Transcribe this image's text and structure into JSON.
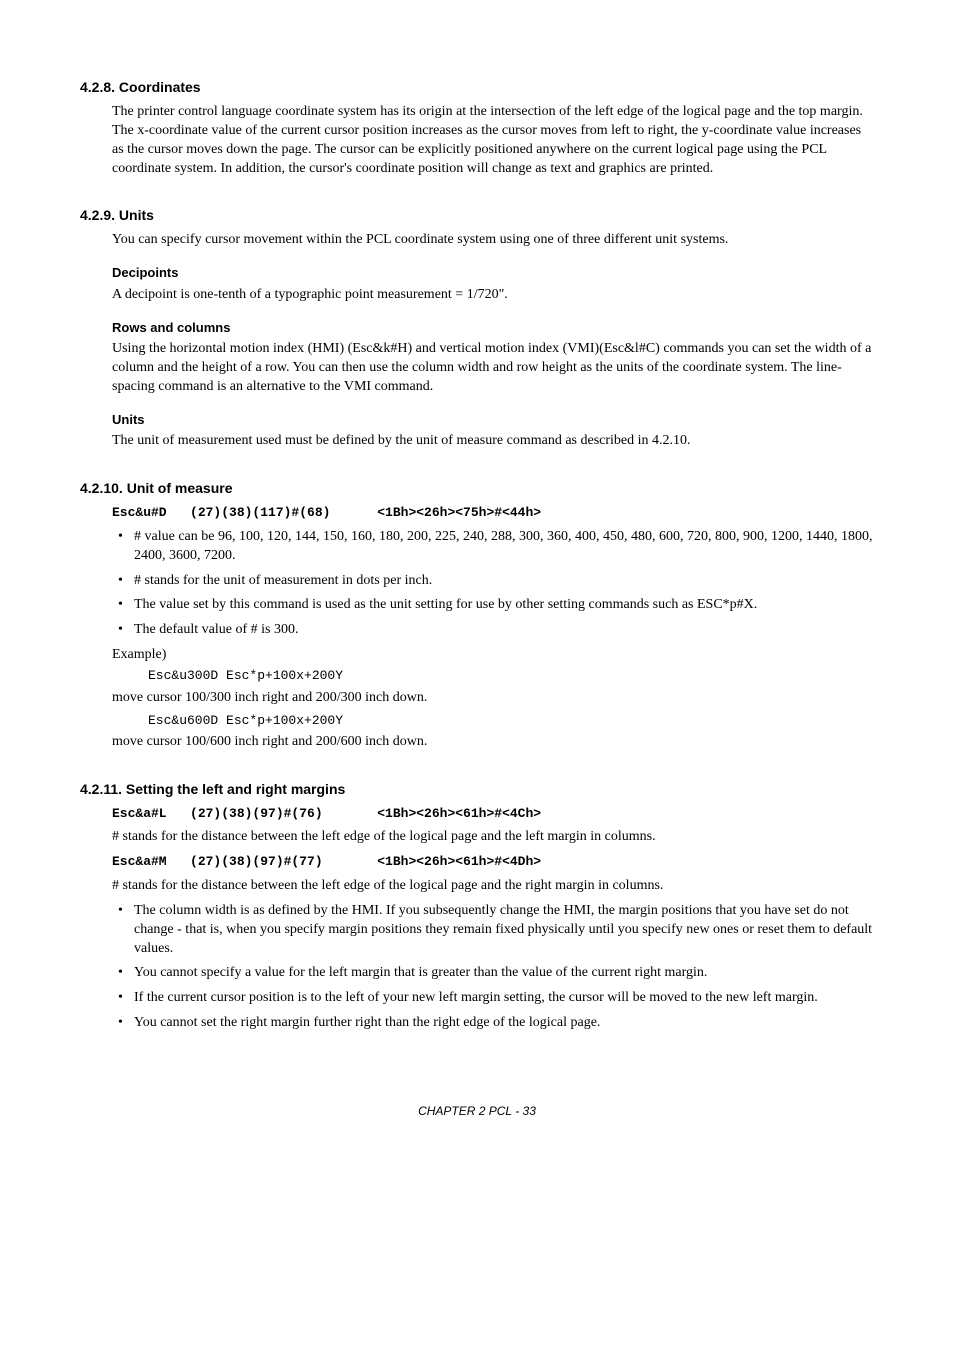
{
  "sections": {
    "coordinates": {
      "heading": "4.2.8.   Coordinates",
      "para": "The printer control language coordinate system has its origin at the intersection of the left edge of the logical page and the top margin. The x-coordinate value of the current cursor position increases as the cursor moves from left to right, the y-coordinate value increases as the cursor moves down the page. The cursor can be explicitly positioned anywhere on the current logical page using the PCL coordinate system. In addition, the cursor's coordinate position will change as text and graphics are printed."
    },
    "units": {
      "heading": "4.2.9.   Units",
      "intro": "You can specify cursor movement within the PCL coordinate system using one of three different unit systems.",
      "decipoints_h": "Decipoints",
      "decipoints_p": "A decipoint is one-tenth of a typographic point measurement = 1/720\".",
      "rows_h": "Rows and columns",
      "rows_p": "Using the horizontal motion index (HMI) (Esc&k#H) and vertical motion index (VMI)(Esc&l#C) commands you can set the width of a column and the height of a row. You can then use the column width and row height as the units of the coordinate system. The line-spacing command is an alternative to the VMI command.",
      "units_h": "Units",
      "units_p": "The unit of measurement used must be defined by the unit of measure command as described in 4.2.10."
    },
    "uom": {
      "heading": "4.2.10.  Unit of measure",
      "code": "Esc&u#D   (27)(38)(117)#(68)      <1Bh><26h><75h>#<44h>",
      "b1": "# value can be 96, 100, 120, 144, 150, 160, 180, 200, 225, 240, 288, 300, 360, 400, 450, 480,  600, 720, 800, 900, 1200, 1440, 1800, 2400, 3600, 7200.",
      "b2": "# stands for the unit of measurement in dots per inch.",
      "b3": "The value set by this command is used as the unit setting for use by other setting commands such as ESC*p#X.",
      "b4": "The default value of # is 300.",
      "example_label": "Example)",
      "ex1_code": "Esc&u300D Esc*p+100x+200Y",
      "ex1_text": "move cursor 100/300 inch right and 200/300 inch down.",
      "ex2_code": "Esc&u600D Esc*p+100x+200Y",
      "ex2_text": "move cursor 100/600 inch right and 200/600 inch down."
    },
    "margins": {
      "heading": "4.2.11.  Setting the left and right margins",
      "code1": "Esc&a#L   (27)(38)(97)#(76)       <1Bh><26h><61h>#<4Ch>",
      "p1": "# stands for the distance between the left edge of the logical page and the left margin in columns.",
      "code2": "Esc&a#M   (27)(38)(97)#(77)       <1Bh><26h><61h>#<4Dh>",
      "p2": "# stands for the distance between the left edge of the logical page and the right margin in columns.",
      "b1": "The column width is as defined by the HMI. If you subsequently change the HMI, the margin positions that you have set do not change - that is, when you specify margin positions they remain fixed physically until you specify new ones or reset them to default values.",
      "b2": "You cannot specify a value for the left margin that is greater than the value of the current right margin.",
      "b3": "If the current cursor position is to the left of your new left margin setting, the cursor will be moved to the new left margin.",
      "b4": "You cannot set the right margin further right than the right edge of the logical page."
    }
  },
  "footer": "CHAPTER 2 PCL - 33"
}
